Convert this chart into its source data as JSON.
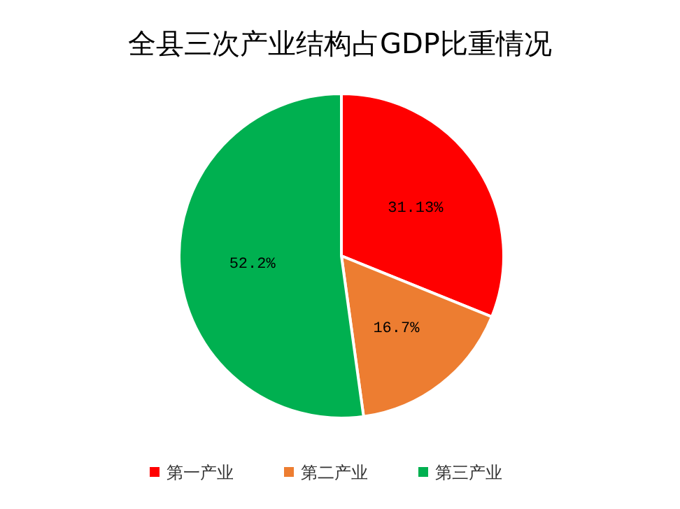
{
  "chart_data": {
    "type": "pie",
    "title": "全县三次产业结构占GDP比重情况",
    "categories": [
      "第一产业",
      "第二产业",
      "第三产业"
    ],
    "values": [
      31.13,
      16.7,
      52.2
    ],
    "colors": [
      "#ff0000",
      "#ed7d31",
      "#00b050"
    ],
    "value_labels": [
      "31.13%",
      "16.7%",
      "52.2%"
    ],
    "legend": "bottom"
  }
}
